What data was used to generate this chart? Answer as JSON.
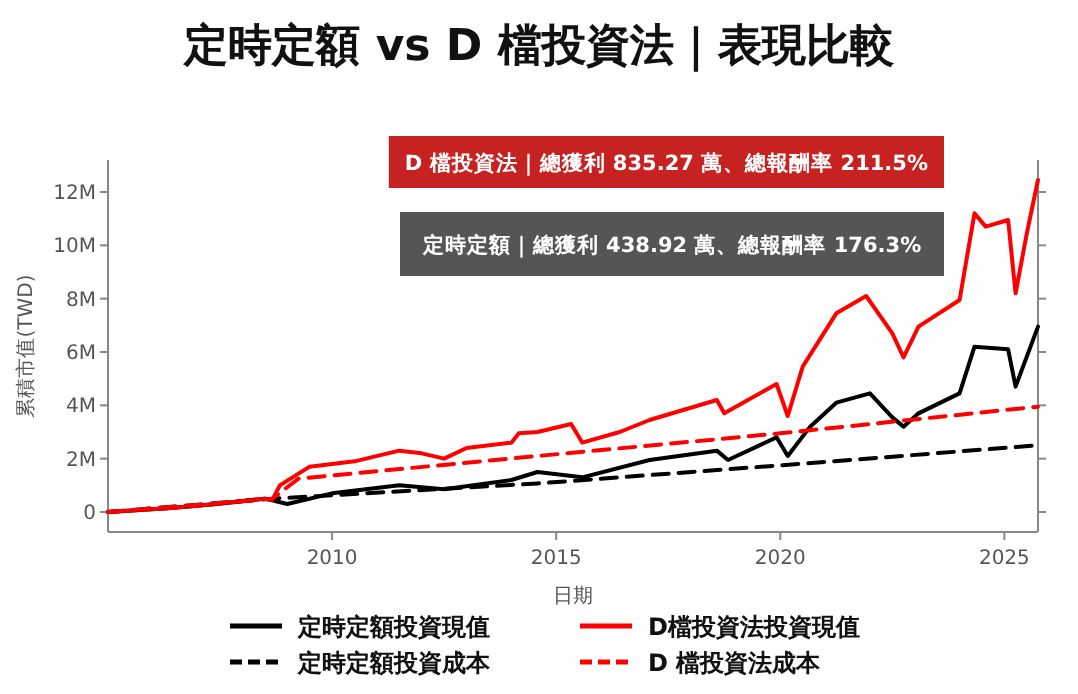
{
  "chart_data": {
    "type": "line",
    "title": "定時定額 vs D  檔投資法｜表現比較",
    "xlabel": "日期",
    "ylabel": "累積市值(TWD)",
    "annotations": [
      "D  檔投資法｜總獲利 835.27 萬、總報酬率  211.5%",
      "定時定額｜總獲利  438.92 萬、總報酬率  176.3%"
    ],
    "xlim": [
      "2005-01",
      "2025-10"
    ],
    "xticks": [
      "2010",
      "2015",
      "2020",
      "2025"
    ],
    "ylim": [
      -0.75,
      13.2
    ],
    "yticks": [
      {
        "value": 0,
        "label": "0"
      },
      {
        "value": 2,
        "label": "2M"
      },
      {
        "value": 4,
        "label": "4M"
      },
      {
        "value": 6,
        "label": "6M"
      },
      {
        "value": 8,
        "label": "8M"
      },
      {
        "value": 10,
        "label": "10M"
      },
      {
        "value": 12,
        "label": "12M"
      }
    ],
    "grid": false,
    "legend": "bottom",
    "marker": "none",
    "series": [
      {
        "name": "定時定額投資現值",
        "color": "#000000",
        "line_style": "solid",
        "x": [
          "2005-01",
          "2006-06",
          "2007-06",
          "2008-07",
          "2009-01",
          "2010-01",
          "2011-07",
          "2012-07",
          "2014-01",
          "2014-08",
          "2015-08",
          "2017-02",
          "2018-08",
          "2018-11",
          "2019-12",
          "2020-03",
          "2020-09",
          "2021-04",
          "2022-01",
          "2022-07",
          "2022-10",
          "2023-02",
          "2024-01",
          "2024-05",
          "2025-02",
          "2025-04",
          "2025-10"
        ],
        "values": [
          0,
          0.15,
          0.3,
          0.5,
          0.3,
          0.7,
          1.0,
          0.85,
          1.2,
          1.5,
          1.3,
          1.95,
          2.3,
          1.95,
          2.8,
          2.1,
          3.2,
          4.1,
          4.45,
          3.55,
          3.2,
          3.7,
          4.45,
          6.2,
          6.1,
          4.7,
          6.95
        ]
      },
      {
        "name": "D檔投資法投資現值",
        "color": "#ff0000",
        "line_style": "solid",
        "x": [
          "2005-01",
          "2006-06",
          "2007-06",
          "2008-07",
          "2008-09",
          "2008-11",
          "2009-07",
          "2010-07",
          "2011-07",
          "2012-01",
          "2012-07",
          "2013-01",
          "2014-01",
          "2014-03",
          "2014-08",
          "2015-05",
          "2015-08",
          "2016-06",
          "2017-02",
          "2018-08",
          "2018-10",
          "2019-12",
          "2020-03",
          "2020-07",
          "2021-04",
          "2021-12",
          "2022-07",
          "2022-10",
          "2023-02",
          "2024-01",
          "2024-05",
          "2024-08",
          "2025-02",
          "2025-04",
          "2025-07",
          "2025-10"
        ],
        "values": [
          0,
          0.15,
          0.3,
          0.5,
          0.45,
          1.0,
          1.7,
          1.9,
          2.3,
          2.2,
          2.0,
          2.4,
          2.6,
          2.95,
          3.0,
          3.3,
          2.6,
          3.0,
          3.45,
          4.2,
          3.7,
          4.8,
          3.6,
          5.45,
          7.45,
          8.1,
          6.7,
          5.8,
          6.95,
          7.95,
          11.2,
          10.7,
          10.95,
          8.2,
          10.45,
          12.45
        ]
      },
      {
        "name": "定時定額投資成本",
        "color": "#000000",
        "line_style": "dashed",
        "x": [
          "2005-01",
          "2008-09",
          "2014-08",
          "2020-01",
          "2025-10"
        ],
        "values": [
          0,
          0.5,
          1.07,
          1.75,
          2.5
        ]
      },
      {
        "name": "D 檔投資法成本",
        "color": "#ff0000",
        "line_style": "dashed",
        "x": [
          "2005-01",
          "2008-09",
          "2009-04",
          "2014-08",
          "2020-01",
          "2025-10"
        ],
        "values": [
          0,
          0.5,
          1.25,
          2.1,
          2.95,
          3.95
        ]
      }
    ]
  }
}
